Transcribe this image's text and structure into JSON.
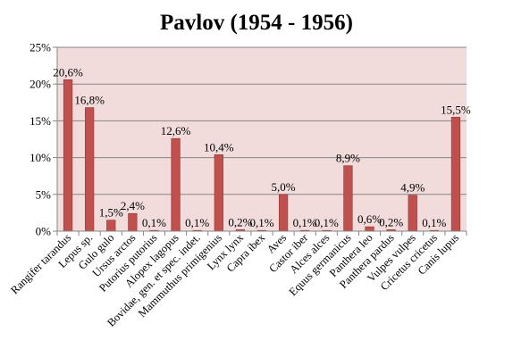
{
  "chart_data": {
    "type": "bar",
    "title": "Pavlov (1954 - 1956)",
    "xlabel": "",
    "ylabel": "",
    "ylim": [
      0,
      25
    ],
    "ytick_labels": [
      "0%",
      "5%",
      "10%",
      "15%",
      "20%",
      "25%"
    ],
    "ytick_values": [
      0,
      5,
      10,
      15,
      20,
      25
    ],
    "grid": true,
    "legend": "none",
    "categories": [
      "Rangifer tarandus",
      "Lepus sp.",
      "Gulo gulo",
      "Ursus arctos",
      "Putorius putorius",
      "Alopex lagopus",
      "Bovidae, gen. et spec. indet.",
      "Mammuthus primigenius",
      "Lynx lynx",
      "Capra ibex",
      "Aves",
      "Castor iber",
      "Alces alces",
      "Equus germanicus",
      "Panthera leo",
      "Panthera pardus",
      "Vulpes vulpes",
      "Cricetus cricetus",
      "Canis lupus"
    ],
    "values": [
      20.6,
      16.8,
      1.5,
      2.4,
      0.1,
      12.6,
      0.1,
      10.4,
      0.2,
      0.1,
      5.0,
      0.1,
      0.1,
      8.9,
      0.6,
      0.2,
      4.9,
      0.1,
      15.5
    ],
    "data_labels": [
      "20,6%",
      "16,8%",
      "1,5%",
      "2,4%",
      "0,1%",
      "12,6%",
      "0,1%",
      "10,4%",
      "0,2%",
      "0,1%",
      "5,0%",
      "0,1%",
      "0,1%",
      "8,9%",
      "0,6%",
      "0,2%",
      "4,9%",
      "0,1%",
      "15,5%"
    ],
    "colors": {
      "bar": "#C0504D",
      "bar_edge": "#8C3836",
      "plot_background": "#F2DCDB",
      "grid": "#868686",
      "axis": "#868686"
    }
  }
}
